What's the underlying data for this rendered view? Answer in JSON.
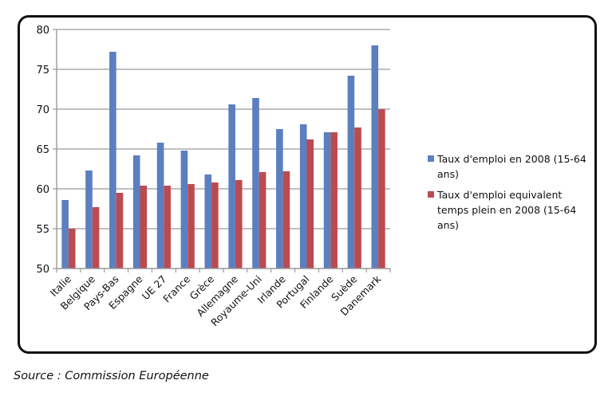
{
  "chart_data": {
    "type": "bar",
    "title": "",
    "xlabel": "",
    "ylabel": "",
    "ylim": [
      50,
      80
    ],
    "yticks": [
      50,
      55,
      60,
      65,
      70,
      75,
      80
    ],
    "grid": true,
    "legend_position": "right",
    "categories": [
      "Italie",
      "Belgique",
      "Pays-Bas",
      "Espagne",
      "UE 27",
      "France",
      "Grèce",
      "Allemagne",
      "Royaume-Uni",
      "Irlande",
      "Portugal",
      "Finlande",
      "Suède",
      "Danemark"
    ],
    "series": [
      {
        "name": "Taux d'emploi en 2008 (15-64 ans)",
        "color": "#5b7fbf",
        "values": [
          58.6,
          62.3,
          77.2,
          64.2,
          65.8,
          64.8,
          61.8,
          70.6,
          71.4,
          67.5,
          68.1,
          67.1,
          74.2,
          78.0
        ]
      },
      {
        "name": "Taux d'emploi equivalent temps plein en 2008  (15-64 ans)",
        "color": "#bc4b51",
        "values": [
          55.0,
          57.7,
          59.5,
          60.4,
          60.4,
          60.6,
          60.8,
          61.1,
          62.1,
          62.2,
          66.2,
          67.1,
          67.7,
          70.0
        ]
      }
    ]
  },
  "legend": {
    "items": [
      {
        "label": "Taux d'emploi en 2008 (15-64 ans)"
      },
      {
        "label": "Taux d'emploi equivalent temps plein en 2008  (15-64 ans)"
      }
    ]
  },
  "source": "Source : Commission Européenne"
}
